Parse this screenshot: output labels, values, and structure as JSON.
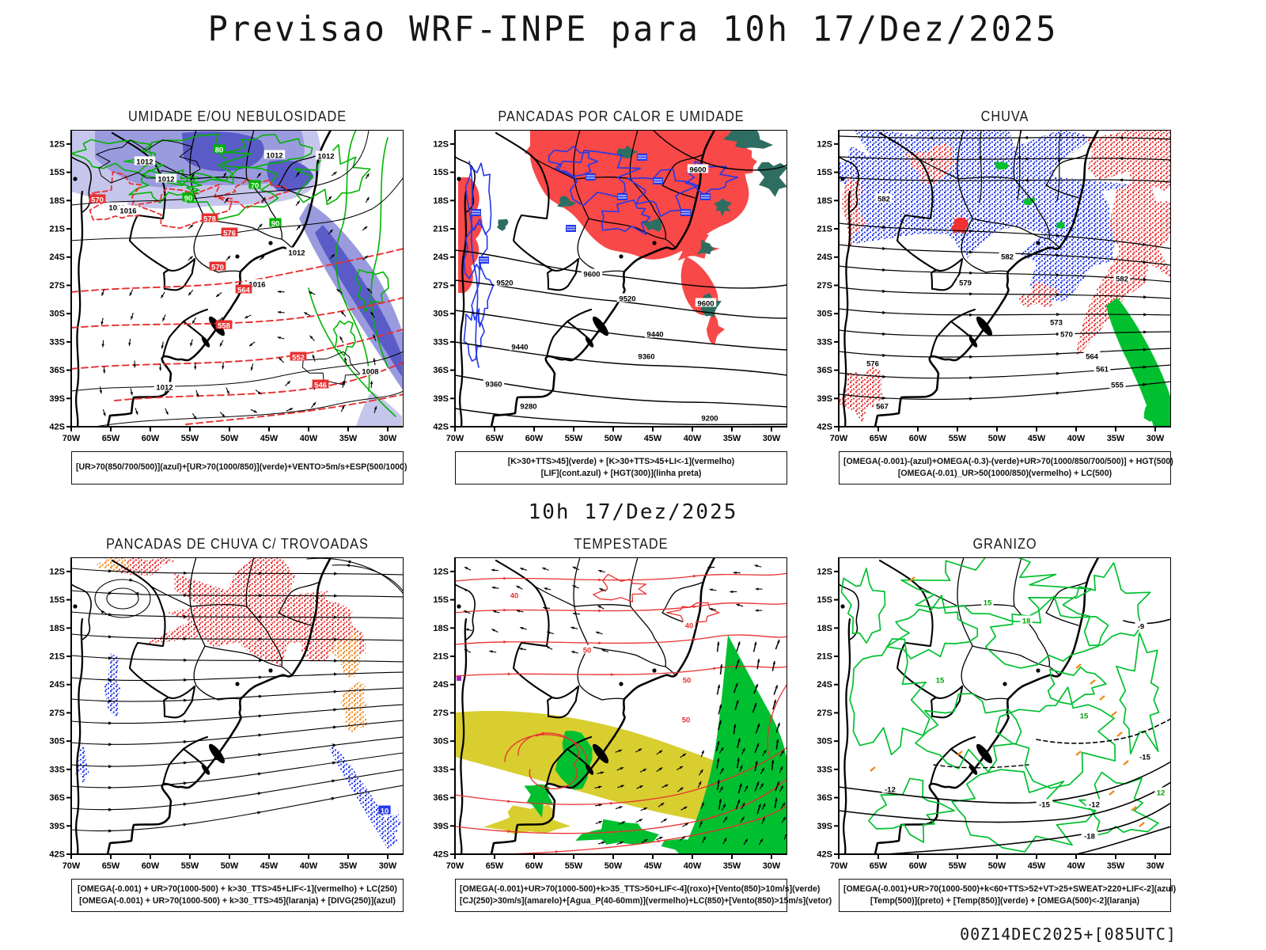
{
  "header": {
    "title": "Previsao WRF-INPE  para 10h 17/Dez/2025"
  },
  "center_label": "10h 17/Dez/2025",
  "footer": {
    "timestamp": "00Z14DEC2025+[085UTC]"
  },
  "axes": {
    "lat": [
      "12S",
      "15S",
      "18S",
      "21S",
      "24S",
      "27S",
      "30S",
      "33S",
      "36S",
      "39S",
      "42S"
    ],
    "lon": [
      "70W",
      "65W",
      "60W",
      "55W",
      "50W",
      "45W",
      "40W",
      "35W",
      "30W"
    ]
  },
  "colors": {
    "shade_blue_light": "#c6c6ec",
    "shade_blue_mid": "#9a9ade",
    "shade_blue_dark": "#5b5bc8",
    "green_contour": "#00b400",
    "green_fill": "#00c030",
    "red": "#e83030",
    "red_fill": "#f84848",
    "teal": "#2e6e62",
    "blue": "#2438e8",
    "yellow": "#d8ce30",
    "orange": "#f08818",
    "black": "#000000"
  },
  "panels": [
    {
      "id": "umidade",
      "title": "UMIDADE E/OU NEBULOSIDADE",
      "caption_lines": [
        "[UR>70(850/700/500)](azul)+[UR>70(1000/850)](verde)+VENTO>5m/s+ESP(500/1000)"
      ],
      "contour_labels": {
        "black": [
          "1012",
          "1012",
          "1012",
          "1012",
          "1020",
          "1016",
          "1012",
          "1016",
          "1008",
          "1012"
        ],
        "red": [
          "570",
          "578",
          "576",
          "570",
          "564",
          "558",
          "552",
          "546"
        ],
        "green": [
          "90",
          "80",
          "90",
          "70"
        ]
      }
    },
    {
      "id": "pancadas_calor",
      "title": "PANCADAS POR CALOR E UMIDADE",
      "caption_lines": [
        "[K>30+TTS>45](verde) + [K>30+TTS>45+LI<-1](vermelho)",
        "[LIF](cont.azul) + [HGT(300)](linha preta)"
      ],
      "contour_labels": {
        "black": [
          "9600",
          "9600",
          "9600",
          "9520",
          "9520",
          "9440",
          "9440",
          "9360",
          "9360",
          "9280",
          "9200"
        ]
      }
    },
    {
      "id": "chuva",
      "title": "CHUVA",
      "caption_lines": [
        "[OMEGA(-0.001)-(azul)+OMEGA(-0.3)-(verde)+UR>70(1000/850/700/500)] + HGT(500)",
        "[OMEGA(-0.01)_UR>50(1000/850)(vermelho) + LC(500)"
      ],
      "contour_labels": {
        "black": [
          "582",
          "582",
          "582",
          "579",
          "576",
          "573",
          "570",
          "567",
          "564",
          "561",
          "555"
        ]
      }
    },
    {
      "id": "trovoadas",
      "title": "PANCADAS DE CHUVA C/ TROVOADAS",
      "caption_lines": [
        "[OMEGA(-0.001) + UR>70(1000-500) + k>30_TTS>45+LIF<-1](vermelho) + LC(250)",
        "[OMEGA(-0.001) + UR>70(1000-500) + k>30_TTS>45](laranja) + [DIVG(250)](azul)"
      ],
      "contour_labels": {
        "blue": [
          "10"
        ]
      }
    },
    {
      "id": "tempestade",
      "title": "TEMPESTADE",
      "caption_lines": [
        "[OMEGA(-0.001)+UR>70(1000-500)+k>35_TTS>50+LIF<-4](roxo)+[Vento(850)>10m/s](verde)",
        "[CJ(250)>30m/s](amarelo)+[Agua_P(40-60mm)](vermelho)+LC(850)+[Vento(850)>15m/s](vetor)"
      ],
      "contour_labels": {
        "red": [
          "40",
          "50",
          "50",
          "40",
          "50"
        ]
      }
    },
    {
      "id": "granizo",
      "title": "GRANIZO",
      "caption_lines": [
        "[OMEGA(-0.001)+UR>70(1000-500)+k<60+TTS>52+VT>25+SWEAT>220+LIF<-2](azul)",
        "[Temp(500)](preto) + [Temp(850)](verde) + [OMEGA(500)<-2](laranja)"
      ],
      "contour_labels": {
        "green": [
          "15",
          "18",
          "15",
          "15",
          "12"
        ],
        "black": [
          "-9",
          "-12",
          "-15",
          "-12",
          "-15",
          "-18"
        ]
      }
    }
  ]
}
